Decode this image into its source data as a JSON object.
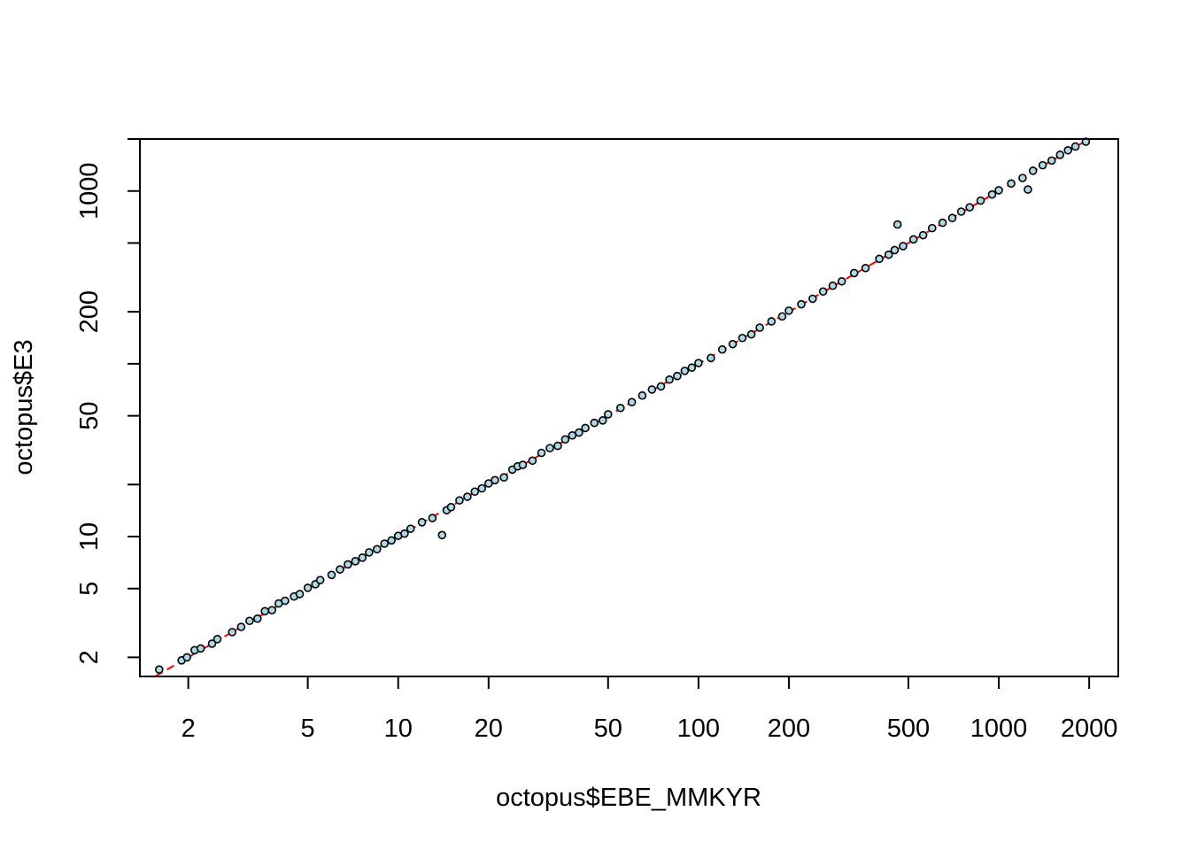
{
  "chart_data": {
    "type": "scatter",
    "title": "",
    "xlabel": "octopus$EBE_MMKYR",
    "ylabel": "octopus$E3",
    "x_scale": "log",
    "y_scale": "log",
    "xlim": [
      1.38,
      2500
    ],
    "ylim": [
      1.55,
      2000
    ],
    "x_ticks": [
      2,
      5,
      10,
      20,
      50,
      100,
      200,
      500,
      1000,
      2000
    ],
    "x_tick_labels": [
      "2",
      "5",
      "10",
      "20",
      "50",
      "100",
      "200",
      "500",
      "1000",
      "2000"
    ],
    "y_ticks": [
      2,
      5,
      10,
      20,
      50,
      100,
      200,
      500,
      1000,
      2000
    ],
    "y_tick_labels": [
      "2",
      "5",
      "10",
      "",
      "50",
      "",
      "200",
      "",
      "1000",
      ""
    ],
    "grid": false,
    "legend": "none",
    "point_color": "#add8e6",
    "point_edge_color": "#000000",
    "reference_line": {
      "slope": 1,
      "intercept": 0,
      "style": "dashed",
      "color": "#ff0000"
    },
    "series": [
      {
        "points": [
          [
            1.6,
            1.7
          ],
          [
            1.9,
            1.92
          ],
          [
            1.98,
            2.0
          ],
          [
            2.1,
            2.2
          ],
          [
            2.2,
            2.25
          ],
          [
            2.4,
            2.4
          ],
          [
            2.5,
            2.55
          ],
          [
            2.8,
            2.8
          ],
          [
            3.0,
            3.0
          ],
          [
            3.2,
            3.25
          ],
          [
            3.4,
            3.35
          ],
          [
            3.6,
            3.7
          ],
          [
            3.8,
            3.75
          ],
          [
            4.0,
            4.1
          ],
          [
            4.2,
            4.25
          ],
          [
            4.5,
            4.5
          ],
          [
            4.7,
            4.65
          ],
          [
            5.0,
            5.05
          ],
          [
            5.3,
            5.3
          ],
          [
            5.5,
            5.6
          ],
          [
            6.0,
            6.0
          ],
          [
            6.4,
            6.45
          ],
          [
            6.8,
            6.9
          ],
          [
            7.2,
            7.2
          ],
          [
            7.6,
            7.55
          ],
          [
            8.0,
            8.1
          ],
          [
            8.5,
            8.45
          ],
          [
            9.0,
            9.1
          ],
          [
            9.5,
            9.5
          ],
          [
            10.0,
            10.1
          ],
          [
            10.5,
            10.4
          ],
          [
            11.0,
            11.1
          ],
          [
            12.0,
            12.1
          ],
          [
            13.0,
            12.8
          ],
          [
            14.0,
            10.2
          ],
          [
            14.5,
            14.2
          ],
          [
            15.0,
            14.8
          ],
          [
            16.0,
            16.2
          ],
          [
            17.0,
            17.0
          ],
          [
            18.0,
            18.2
          ],
          [
            19.0,
            19.0
          ],
          [
            20.0,
            20.3
          ],
          [
            21.0,
            21.2
          ],
          [
            22.5,
            22.0
          ],
          [
            24.0,
            24.4
          ],
          [
            25.0,
            25.5
          ],
          [
            26.0,
            26.0
          ],
          [
            28.0,
            27.5
          ],
          [
            30.0,
            30.5
          ],
          [
            32.0,
            32.5
          ],
          [
            34.0,
            33.5
          ],
          [
            36.0,
            36.5
          ],
          [
            38.0,
            38.5
          ],
          [
            40.0,
            40.0
          ],
          [
            42.0,
            42.5
          ],
          [
            45.0,
            45.5
          ],
          [
            48.0,
            47.0
          ],
          [
            50.0,
            51.0
          ],
          [
            55.0,
            55.5
          ],
          [
            60.0,
            60.0
          ],
          [
            65.0,
            65.5
          ],
          [
            70.0,
            71.0
          ],
          [
            75.0,
            74.0
          ],
          [
            80.0,
            81.0
          ],
          [
            85.0,
            85.0
          ],
          [
            90.0,
            91.0
          ],
          [
            95.0,
            95.0
          ],
          [
            100.0,
            101.0
          ],
          [
            110.0,
            108.0
          ],
          [
            120.0,
            121.0
          ],
          [
            130.0,
            130.0
          ],
          [
            140.0,
            141.0
          ],
          [
            150.0,
            148.0
          ],
          [
            160.0,
            162.0
          ],
          [
            175.0,
            176.0
          ],
          [
            190.0,
            188.0
          ],
          [
            200.0,
            203.0
          ],
          [
            220.0,
            221.0
          ],
          [
            240.0,
            238.0
          ],
          [
            260.0,
            262.0
          ],
          [
            280.0,
            283.0
          ],
          [
            300.0,
            300.0
          ],
          [
            330.0,
            335.0
          ],
          [
            360.0,
            358.0
          ],
          [
            400.0,
            405.0
          ],
          [
            430.0,
            428.0
          ],
          [
            450.0,
            455.0
          ],
          [
            460.0,
            640.0
          ],
          [
            480.0,
            480.0
          ],
          [
            520.0,
            525.0
          ],
          [
            560.0,
            555.0
          ],
          [
            600.0,
            610.0
          ],
          [
            650.0,
            655.0
          ],
          [
            700.0,
            698.0
          ],
          [
            750.0,
            760.0
          ],
          [
            800.0,
            805.0
          ],
          [
            870.0,
            880.0
          ],
          [
            950.0,
            955.0
          ],
          [
            1000.0,
            1010.0
          ],
          [
            1100.0,
            1105.0
          ],
          [
            1200.0,
            1190.0
          ],
          [
            1250.0,
            1020.0
          ],
          [
            1300.0,
            1310.0
          ],
          [
            1400.0,
            1410.0
          ],
          [
            1500.0,
            1500.0
          ],
          [
            1600.0,
            1620.0
          ],
          [
            1700.0,
            1720.0
          ],
          [
            1800.0,
            1810.0
          ],
          [
            1950.0,
            1930.0
          ]
        ]
      }
    ]
  }
}
